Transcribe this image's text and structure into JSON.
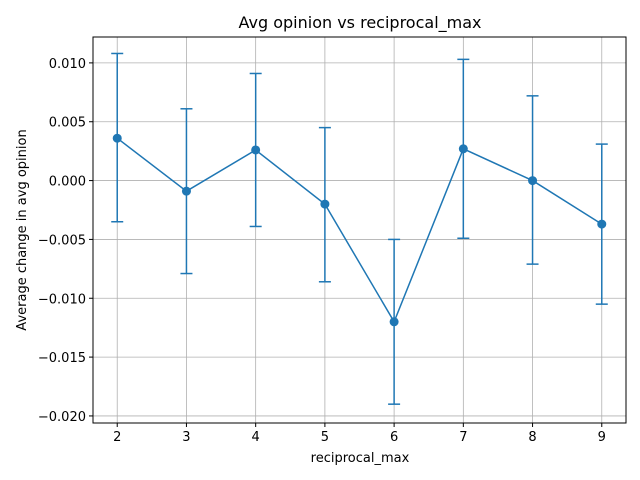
{
  "chart_data": {
    "type": "line",
    "title": "Avg opinion vs reciprocal_max",
    "xlabel": "reciprocal_max",
    "ylabel": "Average change in avg opinion",
    "x": [
      2,
      3,
      4,
      5,
      6,
      7,
      8,
      9
    ],
    "series": [
      {
        "values": [
          0.0036,
          -0.0009,
          0.0026,
          -0.002,
          -0.012,
          0.0027,
          0.0,
          -0.0037
        ],
        "error_lower": [
          -0.0035,
          -0.0079,
          -0.0039,
          -0.0086,
          -0.019,
          -0.0049,
          -0.0071,
          -0.0105
        ],
        "error_upper": [
          0.0108,
          0.0061,
          0.0091,
          0.0045,
          -0.005,
          0.0103,
          0.0072,
          0.0031
        ]
      }
    ],
    "xlim": [
      1.65,
      9.35
    ],
    "ylim": [
      -0.0206,
      0.0122
    ],
    "x_ticks": [
      "2",
      "3",
      "4",
      "5",
      "6",
      "7",
      "8",
      "9"
    ],
    "y_ticks": [
      "0.010",
      "0.005",
      "0.000",
      "−0.005",
      "−0.010",
      "−0.015",
      "−0.020"
    ],
    "y_tick_values": [
      0.01,
      0.005,
      0.0,
      -0.005,
      -0.01,
      -0.015,
      -0.02
    ],
    "grid": true,
    "markers": "circle",
    "error_bars": true,
    "colors": {
      "series": "#1f77b4",
      "grid": "#b0b0b0",
      "axes": "#000000"
    }
  }
}
